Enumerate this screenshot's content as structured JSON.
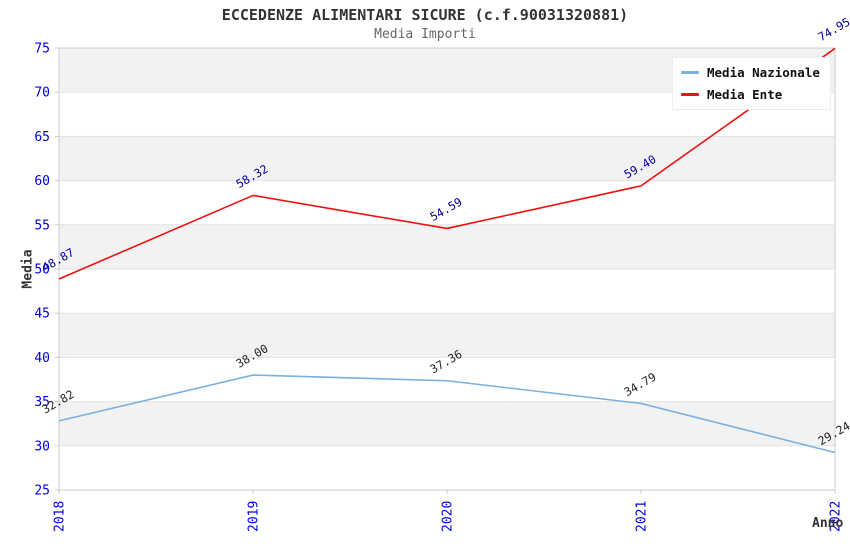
{
  "header": {
    "title": "ECCEDENZE ALIMENTARI SICURE (c.f.90031320881)",
    "subtitle": "Media Importi"
  },
  "chart_data": {
    "type": "line",
    "x": [
      "2018",
      "2019",
      "2020",
      "2021",
      "2022"
    ],
    "xlabel": "Anno",
    "ylabel": "Media",
    "ylim": [
      25,
      75
    ],
    "ytick_step": 5,
    "grid": true,
    "banded_background": true,
    "legend_position": "top-right",
    "point_label_decimals": 2,
    "series": [
      {
        "name": "Media Nazionale",
        "color": "#7cb0dd",
        "label_color": "#222222",
        "values": [
          32.82,
          38.0,
          37.36,
          34.79,
          29.24
        ]
      },
      {
        "name": "Media Ente",
        "color": "#ee1111",
        "label_color": "#000099",
        "values": [
          48.87,
          58.32,
          54.59,
          59.4,
          74.95
        ]
      }
    ]
  },
  "colors": {
    "tick_label": "#0000dd",
    "band": "#f2f2f2",
    "grid": "#e2e2e2",
    "axis_border": "#cccccc",
    "background": "#ffffff"
  }
}
